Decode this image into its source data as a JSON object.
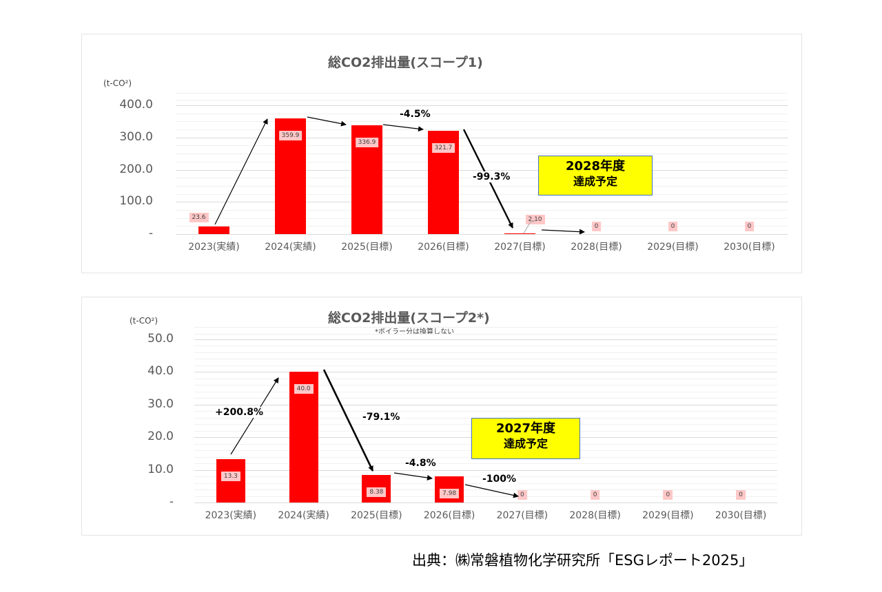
{
  "chart_data": [
    {
      "type": "bar",
      "title": "総CO2排出量(スコープ1)",
      "ylabel": "(t-CO²)",
      "xlabel": "",
      "categories": [
        "2023(実績)",
        "2024(実績)",
        "2025(目標)",
        "2026(目標)",
        "2027(目標)",
        "2028(目標)",
        "2029(目標)",
        "2030(目標)"
      ],
      "values": [
        23.6,
        359.9,
        336.9,
        321.7,
        2.1,
        0,
        0,
        0
      ],
      "value_labels": [
        "23.6",
        "359.9",
        "336.9",
        "321.7",
        "2.10",
        "0",
        "0",
        "0"
      ],
      "ylim": [
        0,
        400
      ],
      "yticks": [
        "400.0",
        "300.0",
        "200.0",
        "100.0",
        "-"
      ],
      "grid": true,
      "annotations": [
        "-4.5%",
        "-99.3%"
      ],
      "callout": [
        "2028年度",
        "達成予定"
      ],
      "bar_color": "#ff0000"
    },
    {
      "type": "bar",
      "title": "総CO2排出量(スコープ2*)",
      "subtitle": "*ボイラー分は換算しない",
      "ylabel": "(t-CO²)",
      "xlabel": "",
      "categories": [
        "2023(実績)",
        "2024(実績)",
        "2025(目標)",
        "2026(目標)",
        "2027(目標)",
        "2028(目標)",
        "2029(目標)",
        "2030(目標)"
      ],
      "values": [
        13.3,
        40.0,
        8.38,
        7.98,
        0,
        0,
        0,
        0
      ],
      "value_labels": [
        "13.3",
        "40.0",
        "8.38",
        "7.98",
        "0",
        "0",
        "0",
        "0"
      ],
      "ylim": [
        0,
        50
      ],
      "yticks": [
        "50.0",
        "40.0",
        "30.0",
        "20.0",
        "10.0",
        "-"
      ],
      "grid": true,
      "annotations": [
        "+200.8%",
        "-79.1%",
        "-4.8%",
        "-100%"
      ],
      "callout": [
        "2027年度",
        "達成予定"
      ],
      "bar_color": "#ff0000"
    }
  ],
  "source": "出典：㈱常磐植物化学研究所「ESGレポート2025」"
}
